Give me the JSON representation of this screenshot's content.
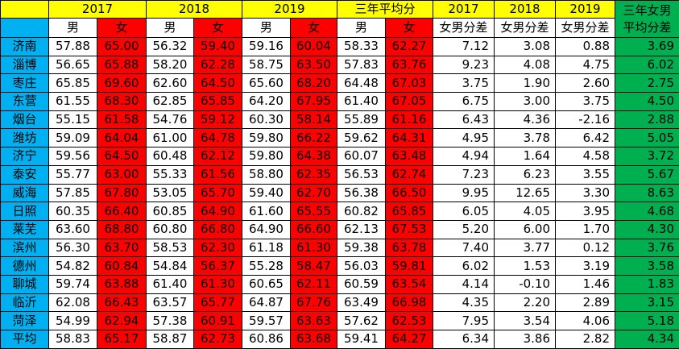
{
  "header": {
    "groups": [
      "2017",
      "2018",
      "2019",
      "三年平均分"
    ],
    "diff_years": [
      "2017",
      "2018",
      "2019"
    ],
    "last": [
      "三年女男",
      "平均分差"
    ]
  },
  "subheader": [
    "男",
    "女",
    "男",
    "女",
    "男",
    "女",
    "男",
    "女",
    "女男分差",
    "女男分差",
    "女男分差"
  ],
  "rows": [
    [
      "济南",
      "57.88",
      "65.00",
      "56.32",
      "59.40",
      "59.16",
      "60.04",
      "58.33",
      "62.27",
      "7.12",
      "3.08",
      "0.88",
      "3.69"
    ],
    [
      "淄博",
      "56.65",
      "65.88",
      "58.20",
      "62.28",
      "58.75",
      "63.50",
      "57.83",
      "63.76",
      "9.23",
      "4.08",
      "4.75",
      "6.02"
    ],
    [
      "枣庄",
      "65.85",
      "69.60",
      "62.60",
      "64.50",
      "65.60",
      "68.20",
      "64.48",
      "67.03",
      "3.75",
      "1.90",
      "2.60",
      "2.75"
    ],
    [
      "东营",
      "61.55",
      "68.30",
      "62.85",
      "65.85",
      "64.20",
      "67.95",
      "61.40",
      "67.05",
      "6.75",
      "3.00",
      "3.75",
      "4.50"
    ],
    [
      "烟台",
      "55.15",
      "61.58",
      "54.76",
      "59.12",
      "60.30",
      "58.14",
      "55.89",
      "61.16",
      "6.43",
      "4.36",
      "-2.16",
      "2.88"
    ],
    [
      "潍坊",
      "59.09",
      "64.04",
      "61.00",
      "64.78",
      "59.80",
      "66.22",
      "59.62",
      "64.31",
      "4.95",
      "3.78",
      "6.42",
      "5.05"
    ],
    [
      "济宁",
      "59.56",
      "64.50",
      "60.48",
      "62.12",
      "59.80",
      "64.38",
      "60.07",
      "63.48",
      "4.94",
      "1.64",
      "4.58",
      "3.72"
    ],
    [
      "泰安",
      "55.77",
      "63.00",
      "55.33",
      "61.56",
      "58.80",
      "62.35",
      "56.53",
      "62.74",
      "7.23",
      "6.23",
      "3.55",
      "5.67"
    ],
    [
      "威海",
      "57.85",
      "67.80",
      "53.05",
      "65.70",
      "59.40",
      "62.70",
      "56.38",
      "66.50",
      "9.95",
      "12.65",
      "3.30",
      "8.63"
    ],
    [
      "日照",
      "60.35",
      "66.40",
      "60.85",
      "64.90",
      "61.60",
      "65.55",
      "60.82",
      "65.85",
      "6.05",
      "4.05",
      "3.95",
      "4.68"
    ],
    [
      "莱芜",
      "63.60",
      "68.80",
      "60.80",
      "66.80",
      "64.90",
      "66.60",
      "62.13",
      "67.53",
      "5.20",
      "6.00",
      "1.70",
      "4.30"
    ],
    [
      "滨州",
      "56.30",
      "63.70",
      "58.53",
      "62.30",
      "61.18",
      "61.30",
      "59.38",
      "63.78",
      "7.40",
      "3.77",
      "0.12",
      "3.76"
    ],
    [
      "德州",
      "54.82",
      "60.84",
      "54.84",
      "56.37",
      "55.28",
      "58.47",
      "56.03",
      "59.81",
      "6.02",
      "1.53",
      "3.19",
      "3.58"
    ],
    [
      "聊城",
      "59.74",
      "63.88",
      "61.40",
      "61.30",
      "60.65",
      "62.11",
      "60.59",
      "63.54",
      "4.14",
      "-0.10",
      "1.46",
      "1.83"
    ],
    [
      "临沂",
      "62.08",
      "66.43",
      "63.57",
      "65.77",
      "64.87",
      "67.76",
      "63.49",
      "66.98",
      "4.35",
      "2.20",
      "2.89",
      "3.15"
    ],
    [
      "菏泽",
      "54.99",
      "62.94",
      "57.38",
      "60.91",
      "59.57",
      "63.63",
      "57.62",
      "62.53",
      "7.95",
      "3.54",
      "4.06",
      "5.18"
    ],
    [
      "平均",
      "58.83",
      "65.17",
      "58.87",
      "62.73",
      "60.86",
      "63.68",
      "59.41",
      "64.27",
      "6.34",
      "3.86",
      "2.82",
      "4.34"
    ]
  ]
}
